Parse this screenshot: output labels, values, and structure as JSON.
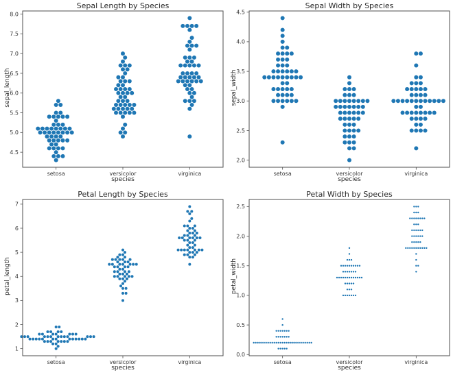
{
  "figure": {
    "background": "#ffffff",
    "dot_color": "#1f77b4",
    "axis_color": "#4d4d4d",
    "text_color": "#333333"
  },
  "chart_data": [
    {
      "type": "swarm",
      "title": "Sepal Length by Species",
      "xlabel": "species",
      "ylabel": "sepal_length",
      "categories": [
        "setosa",
        "versicolor",
        "virginica"
      ],
      "ylim": [
        4.12,
        8.08
      ],
      "yticks": [
        4.5,
        5.0,
        5.5,
        6.0,
        6.5,
        7.0,
        7.5,
        8.0
      ],
      "ytick_labels": [
        "4.5",
        "5.0",
        "5.5",
        "6.0",
        "6.5",
        "7.0",
        "7.5",
        "8.0"
      ],
      "grid": false,
      "legend": "none",
      "marker_diameter_px": 6.6,
      "series": [
        {
          "name": "setosa",
          "values": [
            5.1,
            4.9,
            4.7,
            4.6,
            5.0,
            5.4,
            4.6,
            5.0,
            4.4,
            4.9,
            5.4,
            4.8,
            4.8,
            4.3,
            5.8,
            5.7,
            5.4,
            5.1,
            5.7,
            5.1,
            5.4,
            5.1,
            4.6,
            5.1,
            4.8,
            5.0,
            5.0,
            5.2,
            5.2,
            4.7,
            4.8,
            5.4,
            5.2,
            5.5,
            4.9,
            5.0,
            5.5,
            4.9,
            4.4,
            5.1,
            5.0,
            4.5,
            4.4,
            5.0,
            5.1,
            4.8,
            5.1,
            4.6,
            5.3,
            5.0
          ]
        },
        {
          "name": "versicolor",
          "values": [
            7.0,
            6.4,
            6.9,
            5.5,
            6.5,
            5.7,
            6.3,
            4.9,
            6.6,
            5.2,
            5.0,
            5.9,
            6.0,
            6.1,
            5.6,
            6.7,
            5.6,
            5.8,
            6.2,
            5.6,
            5.9,
            6.1,
            6.3,
            6.1,
            6.4,
            6.6,
            6.8,
            6.7,
            6.0,
            5.7,
            5.5,
            5.5,
            5.8,
            6.0,
            5.4,
            6.0,
            6.7,
            6.3,
            5.6,
            5.5,
            5.5,
            6.1,
            5.8,
            5.0,
            5.6,
            5.7,
            5.7,
            6.2,
            5.1,
            5.7
          ]
        },
        {
          "name": "virginica",
          "values": [
            6.3,
            5.8,
            7.1,
            6.3,
            6.5,
            7.6,
            4.9,
            7.3,
            6.7,
            7.2,
            6.5,
            6.4,
            6.8,
            5.7,
            5.8,
            6.4,
            6.5,
            7.7,
            7.7,
            6.0,
            6.9,
            5.6,
            7.7,
            6.3,
            6.7,
            7.2,
            6.2,
            6.1,
            6.4,
            7.2,
            7.4,
            7.9,
            6.4,
            6.3,
            6.1,
            7.7,
            6.3,
            6.4,
            6.0,
            6.9,
            6.7,
            6.9,
            5.8,
            6.8,
            6.7,
            6.7,
            6.3,
            6.5,
            6.2,
            5.9
          ]
        }
      ]
    },
    {
      "type": "swarm",
      "title": "Sepal Width by Species",
      "xlabel": "species",
      "ylabel": "sepal_width",
      "categories": [
        "setosa",
        "versicolor",
        "virginica"
      ],
      "ylim": [
        1.88,
        4.52
      ],
      "yticks": [
        2.0,
        2.5,
        3.0,
        3.5,
        4.0,
        4.5
      ],
      "ytick_labels": [
        "2.0",
        "2.5",
        "3.0",
        "3.5",
        "4.0",
        "4.5"
      ],
      "grid": false,
      "legend": "none",
      "marker_diameter_px": 6.6,
      "series": [
        {
          "name": "setosa",
          "values": [
            3.5,
            3.0,
            3.2,
            3.1,
            3.6,
            3.9,
            3.4,
            3.4,
            2.9,
            3.1,
            3.7,
            3.4,
            3.0,
            3.0,
            4.0,
            4.4,
            3.9,
            3.5,
            3.8,
            3.8,
            3.4,
            3.7,
            3.6,
            3.3,
            3.4,
            3.0,
            3.4,
            3.5,
            3.4,
            3.2,
            3.1,
            3.4,
            4.1,
            4.2,
            3.1,
            3.2,
            3.5,
            3.6,
            3.0,
            3.4,
            3.5,
            2.3,
            3.2,
            3.5,
            3.8,
            3.0,
            3.8,
            3.2,
            3.7,
            3.3
          ]
        },
        {
          "name": "versicolor",
          "values": [
            3.2,
            3.2,
            3.1,
            2.3,
            2.8,
            2.8,
            3.3,
            2.4,
            2.9,
            2.7,
            2.0,
            3.0,
            2.2,
            2.9,
            2.9,
            3.1,
            3.0,
            2.7,
            2.2,
            2.5,
            3.2,
            2.8,
            2.5,
            2.8,
            2.9,
            3.0,
            2.8,
            3.0,
            2.9,
            2.6,
            2.4,
            2.4,
            2.7,
            2.7,
            3.0,
            3.4,
            3.1,
            2.3,
            3.0,
            2.5,
            2.6,
            3.0,
            2.6,
            2.3,
            2.7,
            3.0,
            2.9,
            2.9,
            2.5,
            2.8
          ]
        },
        {
          "name": "virginica",
          "values": [
            3.3,
            2.7,
            3.0,
            2.9,
            3.0,
            3.0,
            2.5,
            2.9,
            2.5,
            3.6,
            3.2,
            2.7,
            3.0,
            2.5,
            2.8,
            3.2,
            3.0,
            3.8,
            2.6,
            2.2,
            3.2,
            2.8,
            2.8,
            2.7,
            3.3,
            3.2,
            2.8,
            3.0,
            2.8,
            3.0,
            2.8,
            3.8,
            2.8,
            2.8,
            2.6,
            3.0,
            3.4,
            3.1,
            3.0,
            3.1,
            3.1,
            3.1,
            2.7,
            3.2,
            3.3,
            3.0,
            2.5,
            3.0,
            3.4,
            3.0
          ]
        }
      ]
    },
    {
      "type": "swarm",
      "title": "Petal Length by Species",
      "xlabel": "species",
      "ylabel": "petal_length",
      "categories": [
        "setosa",
        "versicolor",
        "virginica"
      ],
      "ylim": [
        0.705,
        7.195
      ],
      "yticks": [
        1,
        2,
        3,
        4,
        5,
        6,
        7
      ],
      "ytick_labels": [
        "1",
        "2",
        "3",
        "4",
        "5",
        "6",
        "7"
      ],
      "grid": false,
      "legend": "none",
      "marker_diameter_px": 4.6,
      "series": [
        {
          "name": "setosa",
          "values": [
            1.4,
            1.4,
            1.3,
            1.5,
            1.4,
            1.7,
            1.4,
            1.5,
            1.4,
            1.5,
            1.5,
            1.6,
            1.4,
            1.1,
            1.2,
            1.5,
            1.3,
            1.4,
            1.7,
            1.5,
            1.7,
            1.5,
            1.0,
            1.7,
            1.9,
            1.6,
            1.6,
            1.5,
            1.4,
            1.6,
            1.6,
            1.5,
            1.5,
            1.4,
            1.5,
            1.2,
            1.3,
            1.4,
            1.3,
            1.5,
            1.3,
            1.3,
            1.3,
            1.6,
            1.9,
            1.4,
            1.6,
            1.4,
            1.5,
            1.4
          ]
        },
        {
          "name": "versicolor",
          "values": [
            4.7,
            4.5,
            4.9,
            4.0,
            4.6,
            4.5,
            4.7,
            3.3,
            4.6,
            3.9,
            3.5,
            4.2,
            4.0,
            4.7,
            3.6,
            4.4,
            4.5,
            4.1,
            4.5,
            3.9,
            4.8,
            4.0,
            4.9,
            4.7,
            4.3,
            4.4,
            4.8,
            5.0,
            4.5,
            3.5,
            3.8,
            3.7,
            3.9,
            5.1,
            4.5,
            4.5,
            4.7,
            4.4,
            4.1,
            4.0,
            4.4,
            4.6,
            4.0,
            3.3,
            4.2,
            4.2,
            4.2,
            4.3,
            3.0,
            4.1
          ]
        },
        {
          "name": "virginica",
          "values": [
            6.0,
            5.1,
            5.9,
            5.6,
            5.8,
            6.6,
            4.5,
            6.3,
            5.8,
            6.1,
            5.1,
            5.3,
            5.5,
            5.0,
            5.1,
            5.3,
            5.5,
            6.7,
            6.9,
            5.0,
            5.7,
            4.9,
            6.7,
            4.9,
            5.7,
            6.0,
            4.8,
            4.9,
            5.6,
            5.8,
            6.1,
            6.4,
            5.6,
            5.1,
            5.6,
            6.1,
            5.6,
            5.5,
            4.8,
            5.4,
            5.6,
            5.1,
            5.1,
            5.9,
            5.7,
            5.2,
            5.0,
            5.2,
            5.4,
            5.1
          ]
        }
      ]
    },
    {
      "type": "swarm",
      "title": "Petal Width by Species",
      "xlabel": "species",
      "ylabel": "petal_width",
      "categories": [
        "setosa",
        "versicolor",
        "virginica"
      ],
      "ylim": [
        -0.02,
        2.62
      ],
      "yticks": [
        0.0,
        0.5,
        1.0,
        1.5,
        2.0,
        2.5
      ],
      "ytick_labels": [
        "0.0",
        "0.5",
        "1.0",
        "1.5",
        "2.0",
        "2.5"
      ],
      "grid": false,
      "legend": "none",
      "marker_diameter_px": 3.0,
      "series": [
        {
          "name": "setosa",
          "values": [
            0.2,
            0.2,
            0.2,
            0.2,
            0.2,
            0.4,
            0.3,
            0.2,
            0.2,
            0.1,
            0.2,
            0.2,
            0.1,
            0.1,
            0.2,
            0.4,
            0.4,
            0.3,
            0.3,
            0.3,
            0.2,
            0.4,
            0.2,
            0.5,
            0.2,
            0.2,
            0.4,
            0.2,
            0.2,
            0.2,
            0.2,
            0.4,
            0.1,
            0.2,
            0.2,
            0.2,
            0.2,
            0.1,
            0.2,
            0.2,
            0.3,
            0.3,
            0.2,
            0.6,
            0.4,
            0.3,
            0.2,
            0.2,
            0.2,
            0.2
          ]
        },
        {
          "name": "versicolor",
          "values": [
            1.4,
            1.5,
            1.5,
            1.3,
            1.5,
            1.3,
            1.6,
            1.0,
            1.3,
            1.4,
            1.0,
            1.5,
            1.0,
            1.4,
            1.3,
            1.4,
            1.5,
            1.0,
            1.5,
            1.1,
            1.8,
            1.3,
            1.5,
            1.2,
            1.3,
            1.4,
            1.4,
            1.7,
            1.5,
            1.0,
            1.1,
            1.0,
            1.2,
            1.6,
            1.5,
            1.6,
            1.5,
            1.3,
            1.3,
            1.3,
            1.2,
            1.4,
            1.2,
            1.0,
            1.3,
            1.2,
            1.3,
            1.3,
            1.1,
            1.3
          ]
        },
        {
          "name": "virginica",
          "values": [
            2.5,
            1.9,
            2.1,
            1.8,
            2.2,
            2.1,
            1.7,
            1.8,
            1.8,
            2.5,
            2.0,
            1.9,
            2.1,
            2.0,
            2.4,
            2.3,
            1.8,
            2.2,
            2.3,
            1.5,
            2.3,
            2.0,
            2.0,
            1.8,
            2.1,
            1.8,
            1.8,
            1.8,
            2.1,
            1.6,
            1.9,
            2.0,
            2.2,
            1.5,
            1.4,
            2.3,
            2.4,
            1.8,
            1.8,
            2.1,
            2.4,
            2.3,
            1.9,
            2.3,
            2.5,
            2.3,
            1.9,
            2.0,
            2.3,
            1.8
          ]
        }
      ]
    }
  ]
}
